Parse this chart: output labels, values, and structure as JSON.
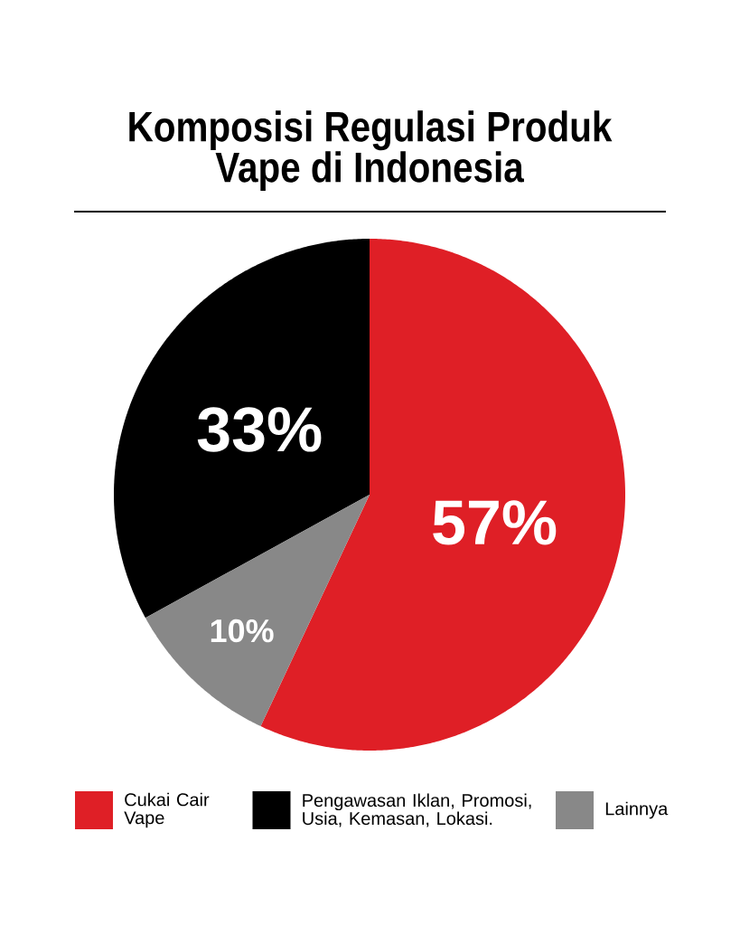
{
  "chart_data": {
    "type": "pie",
    "title": "Komposisi Regulasi Produk Vape di Indonesia",
    "categories": [
      "Cukai Cair Vape",
      "Pengawasan Iklan, Promosi, Usia, Kemasan, Lokasi.",
      "Lainnya"
    ],
    "values": [
      57,
      33,
      10
    ],
    "colors": [
      "#df1f26",
      "#000000",
      "#888888"
    ],
    "value_labels": [
      "57%",
      "33%",
      "10%"
    ],
    "legend": "bottom"
  }
}
